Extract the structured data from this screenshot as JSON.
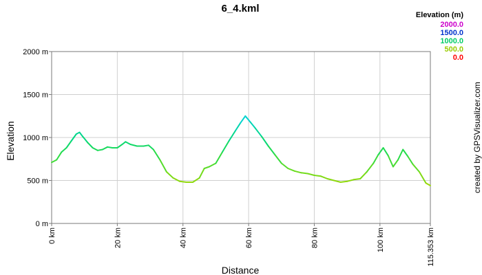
{
  "chart_data": {
    "type": "line",
    "title": "6_4.kml",
    "xlabel": "Distance",
    "ylabel": "Elevation",
    "xlim": [
      0,
      115.353
    ],
    "ylim": [
      0,
      2000
    ],
    "x_ticks": [
      {
        "value": 0,
        "label": "0 km"
      },
      {
        "value": 20,
        "label": "20 km"
      },
      {
        "value": 40,
        "label": "40 km"
      },
      {
        "value": 60,
        "label": "60 km"
      },
      {
        "value": 80,
        "label": "80 km"
      },
      {
        "value": 100,
        "label": "100 km"
      },
      {
        "value": 115.353,
        "label": "115.353 km"
      }
    ],
    "y_ticks": [
      {
        "value": 0,
        "label": "0 m"
      },
      {
        "value": 500,
        "label": "500 m"
      },
      {
        "value": 1000,
        "label": "1000 m"
      },
      {
        "value": 1500,
        "label": "1500 m"
      },
      {
        "value": 2000,
        "label": "2000 m"
      }
    ],
    "grid": true,
    "legend": {
      "title": "Elevation (m)",
      "placement": "top-right",
      "entries": [
        {
          "label": "2000.0",
          "color": "#cc00cc"
        },
        {
          "label": "1500.0",
          "color": "#0033cc"
        },
        {
          "label": "1000.0",
          "color": "#00cc66"
        },
        {
          "label": "500.0",
          "color": "#99cc00"
        },
        {
          "label": "0.0",
          "color": "#ff0000"
        }
      ]
    },
    "series": [
      {
        "x": [
          0,
          1.5,
          3,
          4.5,
          6,
          7.5,
          8.5,
          9.5,
          11,
          12.5,
          14,
          15.5,
          17,
          18.5,
          20,
          21.5,
          22.5,
          24,
          26,
          28,
          29.5,
          31,
          33,
          35,
          37,
          39,
          41,
          43,
          45,
          46.5,
          48,
          50,
          52,
          54,
          56,
          57.5,
          59,
          60.5,
          62,
          64,
          66,
          68,
          70,
          72,
          74,
          76,
          78,
          80,
          82,
          84,
          86,
          88,
          90,
          92,
          94,
          96,
          98,
          99.5,
          101,
          102.5,
          104,
          105.5,
          107,
          108.5,
          110,
          112,
          114,
          115.353
        ],
        "y": [
          710,
          740,
          830,
          880,
          960,
          1040,
          1060,
          1010,
          940,
          880,
          850,
          860,
          890,
          880,
          880,
          920,
          950,
          920,
          900,
          900,
          910,
          860,
          740,
          600,
          530,
          490,
          480,
          480,
          530,
          640,
          660,
          700,
          830,
          960,
          1080,
          1170,
          1250,
          1180,
          1110,
          1010,
          900,
          800,
          700,
          640,
          610,
          590,
          580,
          560,
          550,
          520,
          500,
          480,
          490,
          510,
          520,
          600,
          700,
          800,
          880,
          790,
          660,
          740,
          860,
          780,
          690,
          600,
          470,
          440
        ]
      }
    ],
    "credit": "created by GPSVisualizer.com"
  }
}
